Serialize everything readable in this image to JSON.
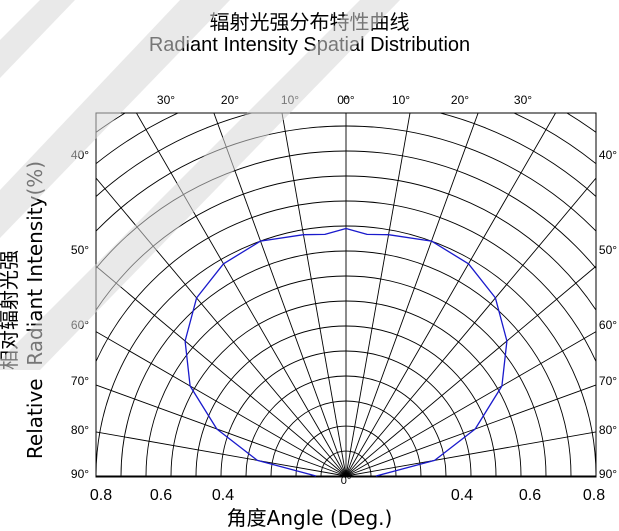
{
  "chart_data": {
    "type": "polar-line",
    "title": "辐射光强分布特性曲线",
    "subtitle": "Radiant Intensity Spatial Distribution",
    "xlabel": "角度Angle (Deg.)",
    "ylabel_line1": "相对辐射光强",
    "ylabel_line2": "Relative  Radiant Intensity(%)",
    "angle_tick_labels_top": [
      "30°",
      "20°",
      "10°",
      "0°",
      "0°",
      "10°",
      "20°",
      "30°"
    ],
    "angle_tick_labels_side": [
      "40°",
      "50°",
      "60°",
      "70°",
      "80°",
      "90°"
    ],
    "angle_tick_labels_bottom": [
      "0°"
    ],
    "radius_tick_labels": [
      "0.8",
      "0.6",
      "0.4",
      "0.4",
      "0.6",
      "0.8"
    ],
    "radius_range": [
      0,
      1.0
    ],
    "angle_range_deg": [
      -90,
      90
    ],
    "grid": true,
    "series": [
      {
        "color": "#1a1acc",
        "angle_deg": [
          -90,
          -80,
          -70,
          -60,
          -50,
          -40,
          -30,
          -20,
          -10,
          -5,
          0,
          5,
          10,
          20,
          30,
          40,
          50,
          60,
          70,
          80,
          90
        ],
        "relative_intensity": [
          0.12,
          0.36,
          0.55,
          0.72,
          0.84,
          0.93,
          0.98,
          1.0,
          0.98,
          0.97,
          0.99,
          0.97,
          0.98,
          1.0,
          0.98,
          0.93,
          0.84,
          0.72,
          0.55,
          0.36,
          0.12
        ]
      }
    ]
  }
}
